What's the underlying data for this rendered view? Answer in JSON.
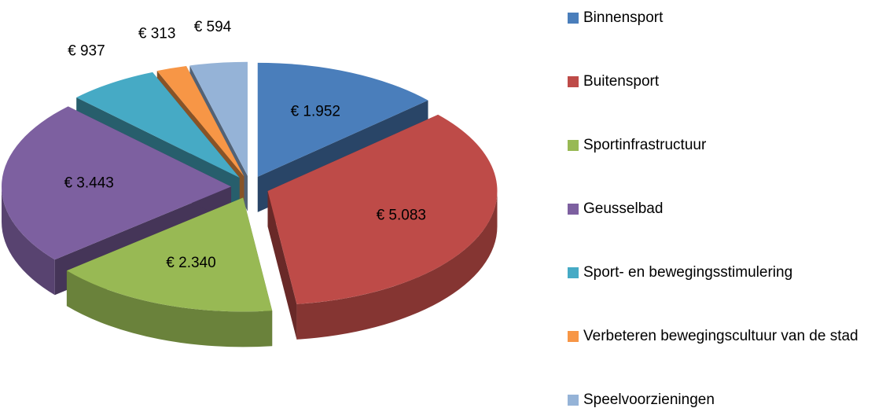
{
  "chart_data": {
    "type": "pie",
    "categories": [
      "Binnensport",
      "Buitensport",
      "Sportinfrastructuur",
      "Geusselbad",
      "Sport- en bewegingsstimulering",
      "Verbeteren bewegingscultuur van de stad",
      "Speelvoorzieningen"
    ],
    "values": [
      1952,
      5083,
      2340,
      3443,
      937,
      313,
      594
    ],
    "value_labels": [
      "€ 1.952",
      "€ 5.083",
      "€ 2.340",
      "€ 3.443",
      "€ 937",
      "€ 313",
      "€ 594"
    ],
    "colors": [
      "#4a7ebb",
      "#be4b48",
      "#98b954",
      "#7d60a0",
      "#46aac5",
      "#f79646",
      "#95b3d7"
    ],
    "legend": "right"
  }
}
